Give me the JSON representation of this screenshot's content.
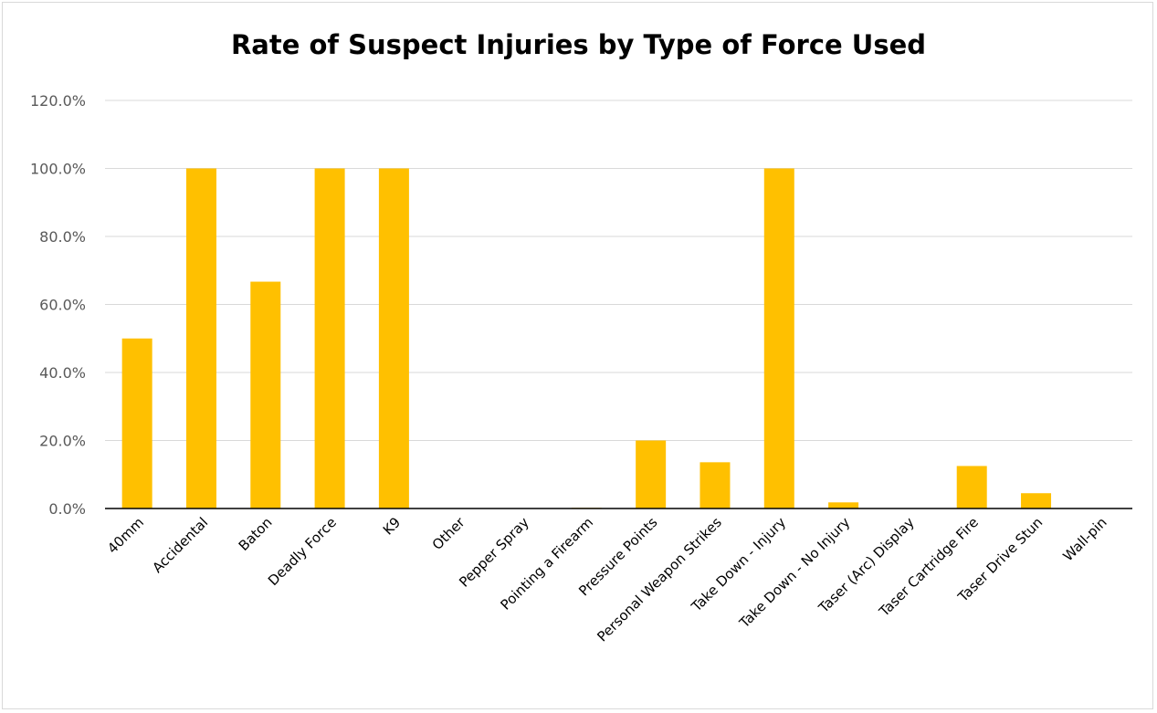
{
  "chart_data": {
    "type": "bar",
    "title": "Rate of Suspect Injuries by Type of Force Used",
    "xlabel": "",
    "ylabel": "",
    "categories": [
      "40mm",
      "Accidental",
      "Baton",
      "Deadly Force",
      "K9",
      "Other",
      "Pepper Spray",
      "Pointing a Firearm",
      "Pressure Points",
      "Personal Weapon Strikes",
      "Take Down - Injury",
      "Take Down - No Injury",
      "Taser (Arc) Display",
      "Taser Cartridge Fire",
      "Taser Drive Stun",
      "Wall-pin"
    ],
    "values": [
      50.0,
      100.0,
      66.7,
      100.0,
      100.0,
      0.0,
      0.0,
      0.2,
      20.0,
      13.6,
      100.0,
      1.8,
      0.0,
      12.5,
      4.5,
      0.0
    ],
    "ylim": [
      0,
      120
    ],
    "yticks": [
      "0.0%",
      "20.0%",
      "40.0%",
      "60.0%",
      "80.0%",
      "100.0%",
      "120.0%"
    ],
    "ytick_values": [
      0,
      20,
      40,
      60,
      80,
      100,
      120
    ],
    "grid": true,
    "legend": "none",
    "bar_color": "#FFC000",
    "grid_color": "#d9d9d9",
    "axis_color": "#000000"
  }
}
